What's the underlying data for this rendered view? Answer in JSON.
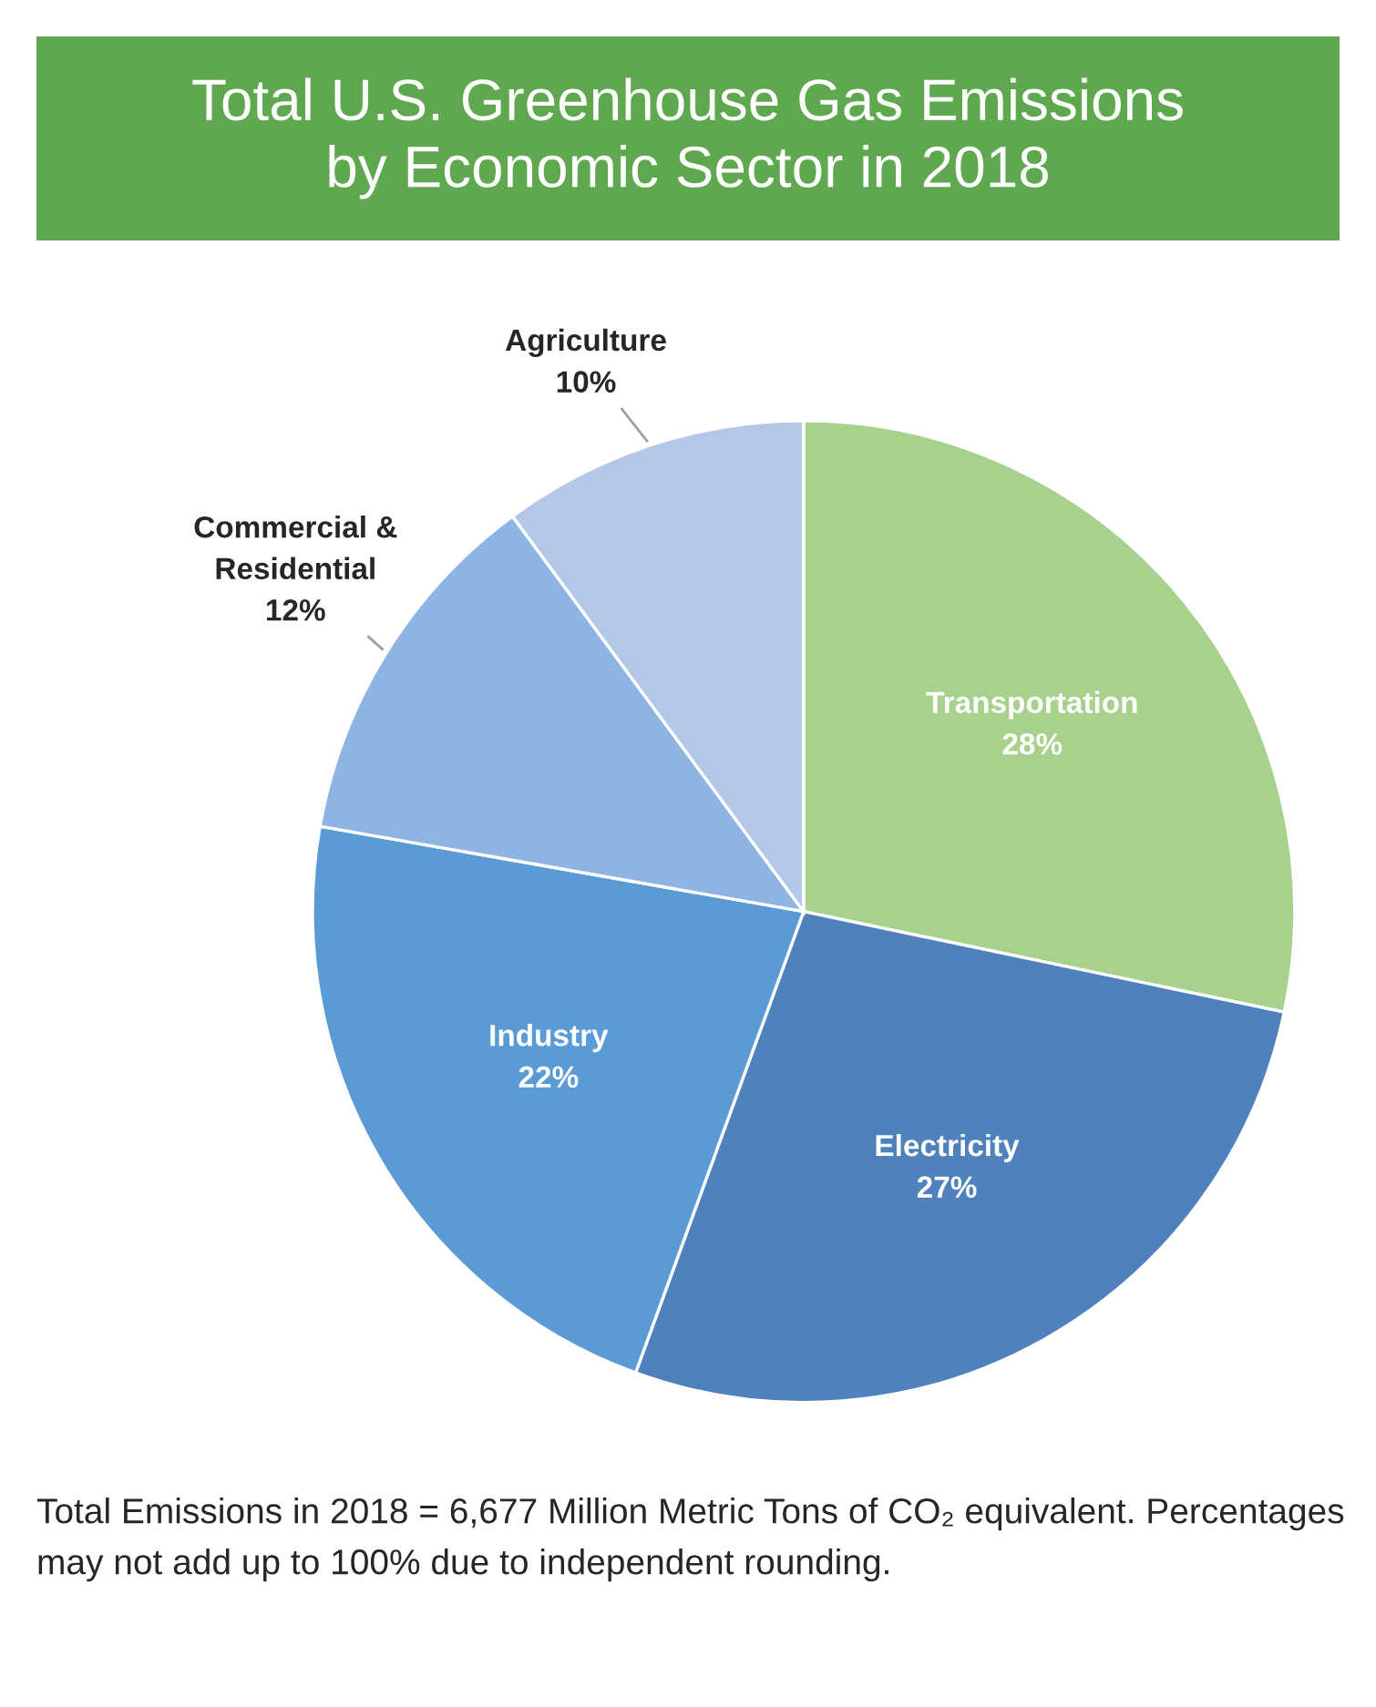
{
  "chart_data": {
    "type": "pie",
    "title": "Total U.S. Greenhouse Gas Emissions\nby Economic Sector in 2018",
    "categories": [
      "Transportation",
      "Electricity",
      "Industry",
      "Commercial &\nResidential",
      "Agriculture"
    ],
    "values": [
      28,
      27,
      22,
      12,
      10
    ],
    "value_labels": [
      "28%",
      "27%",
      "22%",
      "12%",
      "10%"
    ],
    "colors": [
      "#a9d18e",
      "#4f81bd",
      "#5b9bd5",
      "#8eb4e3",
      "#b4c7e7"
    ],
    "annotations": [
      "Total Emissions in 2018 = 6,677 Million Metric Tons of CO₂ equivalent. Percentages may not add up to 100% due to independent rounding."
    ]
  }
}
